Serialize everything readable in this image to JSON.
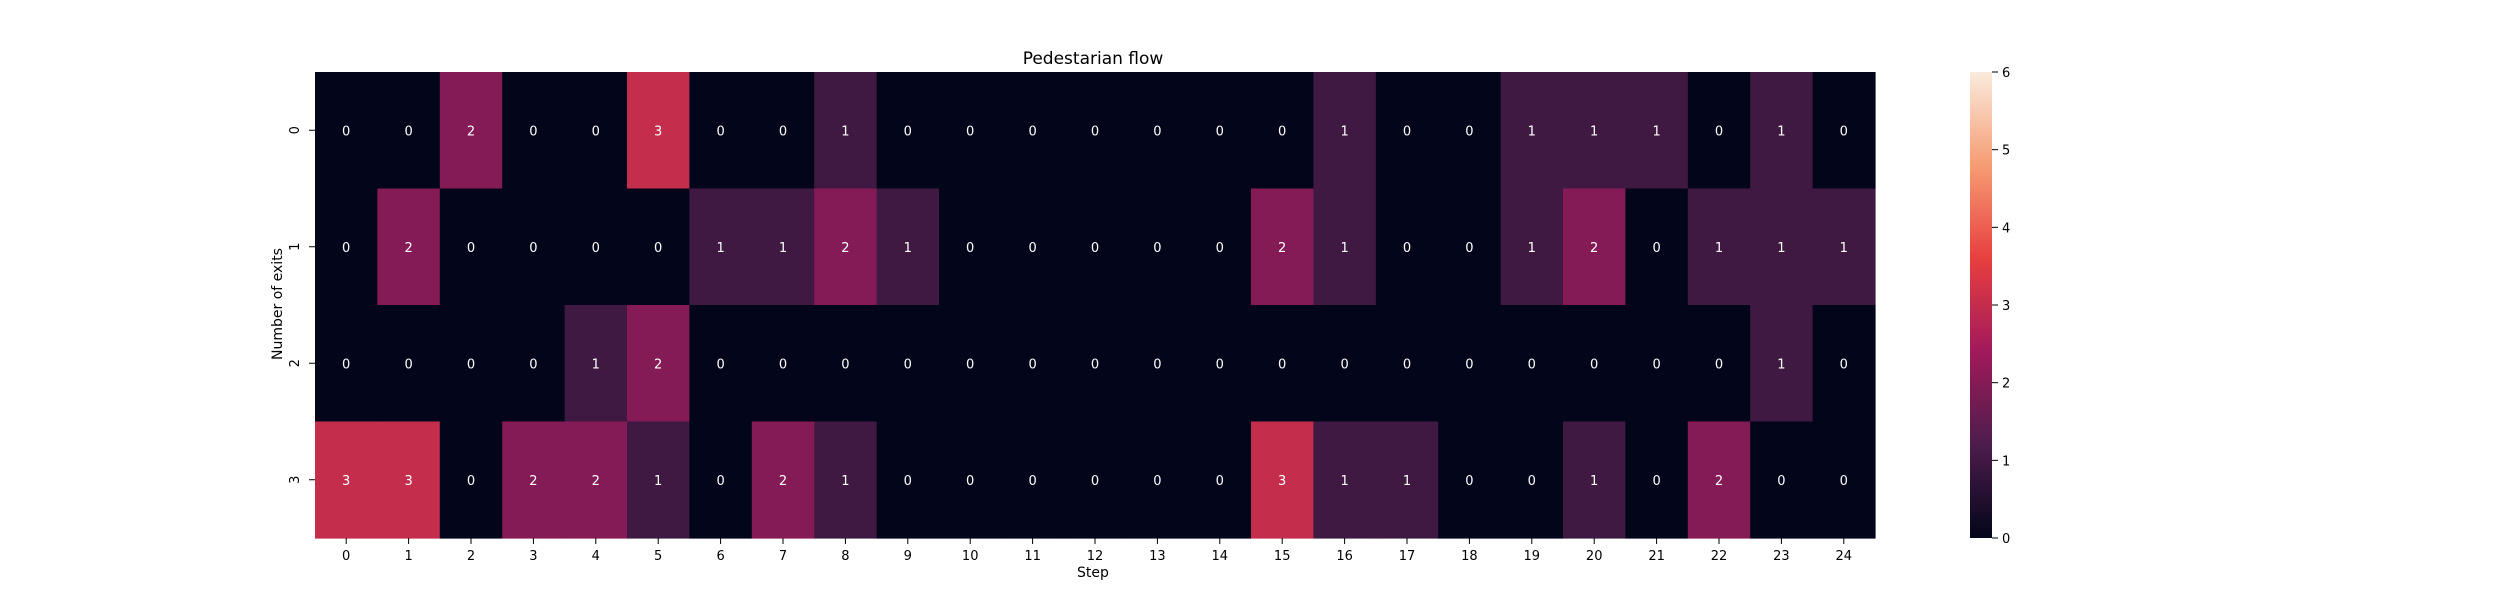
{
  "chart_data": {
    "type": "heatmap",
    "title": "Pedestarian flow",
    "xlabel": "Step",
    "ylabel": "Number of exits",
    "x": [
      "0",
      "1",
      "2",
      "3",
      "4",
      "5",
      "6",
      "7",
      "8",
      "9",
      "10",
      "11",
      "12",
      "13",
      "14",
      "15",
      "16",
      "17",
      "18",
      "19",
      "20",
      "21",
      "22",
      "23",
      "24"
    ],
    "y": [
      "0",
      "1",
      "2",
      "3"
    ],
    "values": [
      [
        0,
        0,
        2,
        0,
        0,
        3,
        0,
        0,
        1,
        0,
        0,
        0,
        0,
        0,
        0,
        0,
        1,
        0,
        0,
        1,
        1,
        1,
        0,
        1,
        0
      ],
      [
        0,
        2,
        0,
        0,
        0,
        0,
        1,
        1,
        2,
        1,
        0,
        0,
        0,
        0,
        0,
        2,
        1,
        0,
        0,
        1,
        2,
        0,
        1,
        1,
        1
      ],
      [
        0,
        0,
        0,
        0,
        1,
        2,
        0,
        0,
        0,
        0,
        0,
        0,
        0,
        0,
        0,
        0,
        0,
        0,
        0,
        0,
        0,
        0,
        0,
        1,
        0
      ],
      [
        3,
        3,
        0,
        2,
        2,
        1,
        0,
        2,
        1,
        0,
        0,
        0,
        0,
        0,
        0,
        3,
        1,
        1,
        0,
        0,
        1,
        0,
        2,
        0,
        0
      ]
    ],
    "colorbar": {
      "range": [
        0,
        6
      ],
      "ticks": [
        "0",
        "1",
        "2",
        "3",
        "4",
        "5",
        "6"
      ]
    },
    "colormap": [
      "#03051a",
      "#4c1d4b",
      "#a11a5b",
      "#e83f3f",
      "#f69c73",
      "#faebdd"
    ],
    "annotation_colors": {
      "dark_cells": "#ffffff",
      "light_cells": "#262626"
    }
  }
}
